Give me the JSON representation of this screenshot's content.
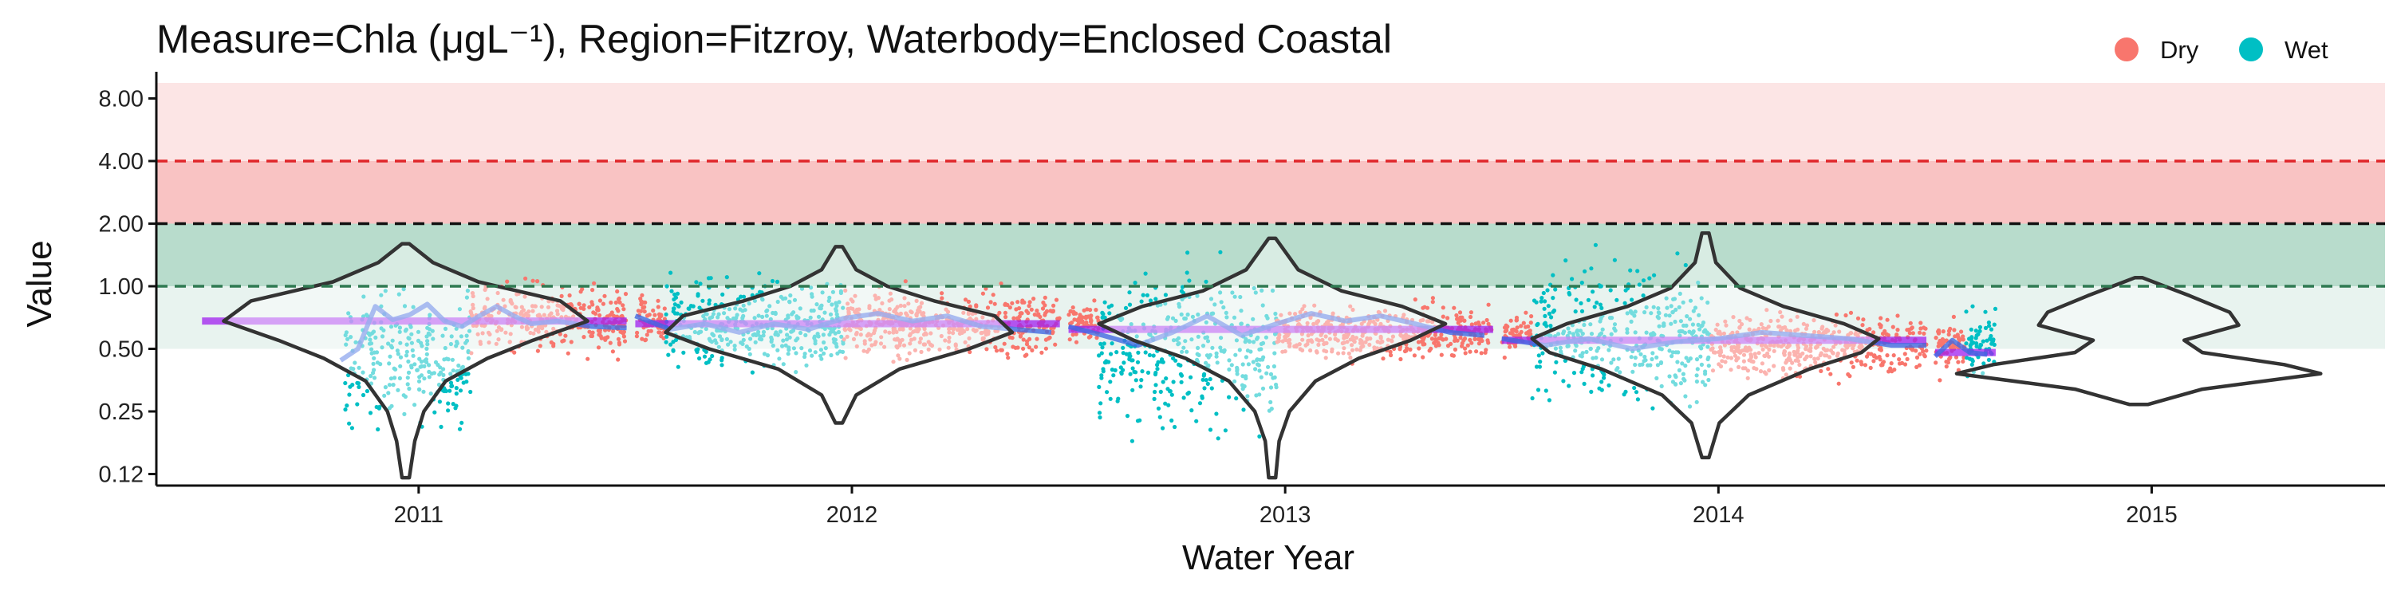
{
  "chart_data": {
    "type": "violin",
    "title": "Measure=Chla (μgL⁻¹), Region=Fitzroy, Waterbody=Enclosed Coastal",
    "xlabel": "Water Year",
    "ylabel": "Value",
    "y_scale": "log2",
    "ylim": [
      0.11,
      9.5
    ],
    "y_ticks": [
      "0.12",
      "0.25",
      "0.50",
      "1.00",
      "2.00",
      "4.00",
      "8.00"
    ],
    "y_tick_values": [
      0.125,
      0.25,
      0.5,
      1,
      2,
      4,
      8
    ],
    "x_categories": [
      "2011",
      "2012",
      "2013",
      "2014",
      "2015"
    ],
    "grid": false,
    "legend": {
      "position": "top-right",
      "entries": [
        {
          "label": "Dry",
          "color": "#f8766d"
        },
        {
          "label": "Wet",
          "color": "#00bfc4"
        }
      ]
    },
    "bands": [
      {
        "from": 0.5,
        "to": 1,
        "color": "#e8f3ef"
      },
      {
        "from": 1,
        "to": 2,
        "color": "#b8dccc"
      },
      {
        "from": 2,
        "to": 4,
        "color": "#f9c3c3"
      },
      {
        "from": 4,
        "to": 9.5,
        "color": "#fce5e5"
      }
    ],
    "reference_lines": [
      {
        "value": 1,
        "color": "#2f7a52",
        "style": "dashed"
      },
      {
        "value": 2,
        "color": "#111111",
        "style": "dashed"
      },
      {
        "value": 4,
        "color": "#e0262a",
        "style": "dashed"
      }
    ],
    "series": [
      {
        "name": "Dry",
        "color": "#f8766d"
      },
      {
        "name": "Wet",
        "color": "#00bfc4"
      }
    ],
    "years": [
      {
        "year": "2011",
        "segments": [
          {
            "season": "Wet",
            "start": 0.33,
            "end": 0.62,
            "low": 0.14,
            "high": 1.4
          },
          {
            "season": "Dry",
            "start": 0.62,
            "end": 0.98,
            "low": 0.38,
            "high": 1.25
          }
        ],
        "trend_mean": 0.68,
        "gam": [
          [
            0.32,
            0.44
          ],
          [
            0.36,
            0.5
          ],
          [
            0.4,
            0.8
          ],
          [
            0.44,
            0.69
          ],
          [
            0.48,
            0.73
          ],
          [
            0.52,
            0.82
          ],
          [
            0.56,
            0.68
          ],
          [
            0.6,
            0.64
          ],
          [
            0.64,
            0.72
          ],
          [
            0.68,
            0.8
          ],
          [
            0.72,
            0.72
          ],
          [
            0.76,
            0.66
          ],
          [
            0.82,
            0.68
          ],
          [
            0.9,
            0.64
          ],
          [
            0.98,
            0.63
          ]
        ],
        "violin": {
          "min": 0.12,
          "max": 1.6,
          "profile": [
            [
              0.12,
              0.02
            ],
            [
              0.18,
              0.05
            ],
            [
              0.25,
              0.1
            ],
            [
              0.35,
              0.22
            ],
            [
              0.45,
              0.45
            ],
            [
              0.55,
              0.7
            ],
            [
              0.68,
              1.0
            ],
            [
              0.85,
              0.85
            ],
            [
              1.05,
              0.4
            ],
            [
              1.3,
              0.15
            ],
            [
              1.6,
              0.02
            ]
          ],
          "max_half_width": 0.42
        }
      },
      {
        "year": "2012",
        "segments": [
          {
            "season": "Dry",
            "start": 0.0,
            "end": 0.07,
            "low": 0.45,
            "high": 1.1
          },
          {
            "season": "Wet",
            "start": 0.07,
            "end": 0.48,
            "low": 0.3,
            "high": 1.45
          },
          {
            "season": "Dry",
            "start": 0.48,
            "end": 0.98,
            "low": 0.38,
            "high": 1.15
          }
        ],
        "trend_mean": 0.66,
        "gam": [
          [
            0.0,
            0.72
          ],
          [
            0.08,
            0.62
          ],
          [
            0.16,
            0.66
          ],
          [
            0.24,
            0.6
          ],
          [
            0.32,
            0.66
          ],
          [
            0.4,
            0.62
          ],
          [
            0.48,
            0.7
          ],
          [
            0.56,
            0.74
          ],
          [
            0.64,
            0.68
          ],
          [
            0.72,
            0.72
          ],
          [
            0.8,
            0.64
          ],
          [
            0.88,
            0.62
          ],
          [
            0.96,
            0.6
          ]
        ],
        "violin": {
          "min": 0.22,
          "max": 1.55,
          "profile": [
            [
              0.22,
              0.02
            ],
            [
              0.3,
              0.1
            ],
            [
              0.4,
              0.35
            ],
            [
              0.5,
              0.75
            ],
            [
              0.6,
              1.0
            ],
            [
              0.72,
              0.9
            ],
            [
              0.85,
              0.55
            ],
            [
              1.0,
              0.28
            ],
            [
              1.2,
              0.1
            ],
            [
              1.55,
              0.02
            ]
          ],
          "max_half_width": 0.4
        }
      },
      {
        "year": "2013",
        "segments": [
          {
            "season": "Dry",
            "start": 0.0,
            "end": 0.07,
            "low": 0.45,
            "high": 0.95
          },
          {
            "season": "Wet",
            "start": 0.07,
            "end": 0.48,
            "low": 0.13,
            "high": 1.85
          },
          {
            "season": "Dry",
            "start": 0.48,
            "end": 0.98,
            "low": 0.38,
            "high": 0.95
          }
        ],
        "trend_mean": 0.62,
        "gam": [
          [
            0.0,
            0.64
          ],
          [
            0.08,
            0.58
          ],
          [
            0.16,
            0.52
          ],
          [
            0.24,
            0.6
          ],
          [
            0.32,
            0.72
          ],
          [
            0.4,
            0.58
          ],
          [
            0.48,
            0.66
          ],
          [
            0.56,
            0.74
          ],
          [
            0.64,
            0.68
          ],
          [
            0.72,
            0.72
          ],
          [
            0.8,
            0.66
          ],
          [
            0.88,
            0.6
          ],
          [
            0.96,
            0.58
          ]
        ],
        "violin": {
          "min": 0.12,
          "max": 1.7,
          "profile": [
            [
              0.12,
              0.02
            ],
            [
              0.18,
              0.04
            ],
            [
              0.25,
              0.1
            ],
            [
              0.35,
              0.25
            ],
            [
              0.45,
              0.5
            ],
            [
              0.55,
              0.8
            ],
            [
              0.66,
              1.0
            ],
            [
              0.8,
              0.75
            ],
            [
              0.95,
              0.4
            ],
            [
              1.2,
              0.15
            ],
            [
              1.7,
              0.02
            ]
          ],
          "max_half_width": 0.4
        }
      },
      {
        "year": "2014",
        "segments": [
          {
            "season": "Dry",
            "start": 0.0,
            "end": 0.07,
            "low": 0.4,
            "high": 0.85
          },
          {
            "season": "Wet",
            "start": 0.07,
            "end": 0.48,
            "low": 0.18,
            "high": 1.85
          },
          {
            "season": "Dry",
            "start": 0.48,
            "end": 0.98,
            "low": 0.3,
            "high": 0.9
          }
        ],
        "trend_mean": 0.55,
        "gam": [
          [
            0.0,
            0.56
          ],
          [
            0.1,
            0.52
          ],
          [
            0.2,
            0.56
          ],
          [
            0.3,
            0.5
          ],
          [
            0.4,
            0.54
          ],
          [
            0.5,
            0.56
          ],
          [
            0.6,
            0.6
          ],
          [
            0.7,
            0.58
          ],
          [
            0.8,
            0.56
          ],
          [
            0.9,
            0.52
          ],
          [
            0.98,
            0.52
          ]
        ],
        "violin": {
          "min": 0.15,
          "max": 1.8,
          "profile": [
            [
              0.15,
              0.02
            ],
            [
              0.22,
              0.08
            ],
            [
              0.3,
              0.25
            ],
            [
              0.4,
              0.6
            ],
            [
              0.48,
              0.9
            ],
            [
              0.56,
              1.0
            ],
            [
              0.66,
              0.8
            ],
            [
              0.8,
              0.45
            ],
            [
              0.98,
              0.2
            ],
            [
              1.3,
              0.06
            ],
            [
              1.8,
              0.02
            ]
          ],
          "max_half_width": 0.4
        }
      },
      {
        "year": "2015",
        "segments": [
          {
            "season": "Dry",
            "start": 0.0,
            "end": 0.07,
            "low": 0.32,
            "high": 0.85
          },
          {
            "season": "Wet",
            "start": 0.07,
            "end": 0.14,
            "low": 0.3,
            "high": 0.95
          }
        ],
        "trend_mean": 0.48,
        "gam": [
          [
            0.0,
            0.46
          ],
          [
            0.04,
            0.55
          ],
          [
            0.08,
            0.48
          ],
          [
            0.12,
            0.47
          ]
        ],
        "violin": {
          "min": 0.27,
          "max": 1.1,
          "profile": [
            [
              0.27,
              0.05
            ],
            [
              0.32,
              0.35
            ],
            [
              0.38,
              1.0
            ],
            [
              0.42,
              0.8
            ],
            [
              0.48,
              0.35
            ],
            [
              0.55,
              0.25
            ],
            [
              0.65,
              0.55
            ],
            [
              0.75,
              0.5
            ],
            [
              0.9,
              0.28
            ],
            [
              1.05,
              0.08
            ],
            [
              1.1,
              0.02
            ]
          ],
          "max_half_width": 0.42
        }
      }
    ]
  }
}
